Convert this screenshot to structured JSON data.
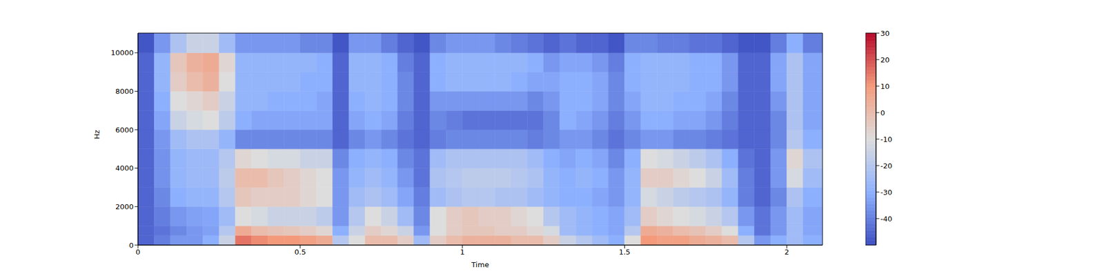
{
  "chart_data": {
    "type": "heatmap",
    "xlabel": "Time",
    "ylabel": "Hz",
    "xlim": [
      0,
      2.11
    ],
    "xticks": [
      0,
      0.5,
      1,
      1.5,
      2
    ],
    "ylim": [
      0,
      11025
    ],
    "yticks": [
      0,
      2000,
      4000,
      6000,
      8000,
      10000
    ],
    "x_edges": [
      0,
      0.05,
      0.1,
      0.15,
      0.2,
      0.25,
      0.3,
      0.35,
      0.4,
      0.45,
      0.5,
      0.55,
      0.6,
      0.65,
      0.7,
      0.75,
      0.8,
      0.85,
      0.9,
      0.95,
      1.0,
      1.05,
      1.1,
      1.15,
      1.2,
      1.25,
      1.3,
      1.35,
      1.4,
      1.45,
      1.5,
      1.55,
      1.6,
      1.65,
      1.7,
      1.75,
      1.8,
      1.85,
      1.9,
      1.95,
      2.0,
      2.05,
      2.11
    ],
    "y_edges": [
      0,
      500,
      1000,
      2000,
      3000,
      4000,
      5000,
      6000,
      7000,
      8000,
      9000,
      10000,
      11025
    ],
    "cells": [
      [
        -45,
        -40,
        -35,
        -35,
        -30,
        -15,
        15,
        12,
        10,
        10,
        8,
        5,
        -20,
        -10,
        0,
        0,
        -5,
        -25,
        -5,
        0,
        3,
        3,
        3,
        0,
        0,
        -5,
        -15,
        -20,
        -25,
        -30,
        -10,
        10,
        8,
        8,
        5,
        3,
        0,
        -20,
        -35,
        -30,
        -25,
        -30
      ],
      [
        -45,
        -42,
        -38,
        -35,
        -33,
        -20,
        5,
        0,
        -2,
        -3,
        -5,
        -8,
        -30,
        -15,
        -5,
        -8,
        -15,
        -35,
        -10,
        -5,
        -3,
        -3,
        -5,
        -5,
        -8,
        -12,
        -25,
        -28,
        -30,
        -32,
        -20,
        5,
        3,
        0,
        -2,
        -5,
        -10,
        -30,
        -42,
        -35,
        -25,
        -32
      ],
      [
        -45,
        -40,
        -35,
        -33,
        -32,
        -25,
        -10,
        -12,
        -15,
        -15,
        -15,
        -18,
        -35,
        -20,
        -10,
        -15,
        -25,
        -38,
        -10,
        -5,
        -3,
        -5,
        -5,
        -8,
        -10,
        -20,
        -25,
        -28,
        -30,
        -32,
        -25,
        -5,
        -8,
        -10,
        -12,
        -15,
        -20,
        -35,
        -42,
        -35,
        -25,
        -32
      ],
      [
        -45,
        -38,
        -30,
        -28,
        -28,
        -20,
        -3,
        -5,
        -5,
        -5,
        -8,
        -10,
        -35,
        -25,
        -22,
        -25,
        -32,
        -40,
        -25,
        -22,
        -20,
        -20,
        -22,
        -22,
        -25,
        -28,
        -30,
        -30,
        -32,
        -35,
        -28,
        -12,
        -15,
        -18,
        -20,
        -22,
        -28,
        -40,
        -45,
        -38,
        -22,
        -30
      ],
      [
        -45,
        -36,
        -28,
        -26,
        -26,
        -18,
        0,
        0,
        -3,
        -5,
        -8,
        -10,
        -35,
        -28,
        -25,
        -28,
        -35,
        -42,
        -22,
        -20,
        -18,
        -18,
        -18,
        -20,
        -22,
        -28,
        -30,
        -28,
        -30,
        -35,
        -28,
        -5,
        -5,
        -8,
        -10,
        -15,
        -25,
        -40,
        -45,
        -35,
        -12,
        -25
      ],
      [
        -45,
        -36,
        -28,
        -26,
        -26,
        -20,
        -8,
        -10,
        -12,
        -12,
        -15,
        -15,
        -38,
        -30,
        -28,
        -30,
        -38,
        -42,
        -25,
        -22,
        -22,
        -22,
        -22,
        -22,
        -25,
        -30,
        -32,
        -30,
        -32,
        -38,
        -30,
        -10,
        -12,
        -15,
        -18,
        -22,
        -30,
        -42,
        -45,
        -35,
        -8,
        -22
      ],
      [
        -45,
        -35,
        -25,
        -22,
        -22,
        -28,
        -38,
        -38,
        -38,
        -38,
        -38,
        -38,
        -45,
        -38,
        -35,
        -38,
        -42,
        -45,
        -40,
        -38,
        -38,
        -38,
        -38,
        -38,
        -40,
        -38,
        -35,
        -35,
        -38,
        -42,
        -38,
        -35,
        -35,
        -38,
        -38,
        -40,
        -42,
        -45,
        -45,
        -38,
        -20,
        -30
      ],
      [
        -45,
        -32,
        -15,
        -12,
        -10,
        -18,
        -30,
        -32,
        -32,
        -32,
        -32,
        -32,
        -45,
        -32,
        -30,
        -32,
        -40,
        -45,
        -38,
        -40,
        -42,
        -42,
        -42,
        -42,
        -42,
        -38,
        -30,
        -32,
        -35,
        -40,
        -35,
        -30,
        -30,
        -32,
        -32,
        -35,
        -40,
        -45,
        -45,
        -38,
        -22,
        -32
      ],
      [
        -45,
        -30,
        -10,
        -8,
        -5,
        -15,
        -28,
        -28,
        -30,
        -30,
        -30,
        -32,
        -45,
        -30,
        -28,
        -30,
        -38,
        -45,
        -35,
        -35,
        -35,
        -35,
        -35,
        -35,
        -38,
        -35,
        -30,
        -30,
        -32,
        -38,
        -32,
        -28,
        -28,
        -30,
        -30,
        -32,
        -38,
        -45,
        -45,
        -35,
        -22,
        -32
      ],
      [
        -45,
        -28,
        -5,
        0,
        3,
        -10,
        -28,
        -28,
        -28,
        -28,
        -30,
        -30,
        -45,
        -28,
        -28,
        -30,
        -38,
        -45,
        -30,
        -28,
        -28,
        -28,
        -28,
        -30,
        -32,
        -32,
        -30,
        -30,
        -32,
        -38,
        -30,
        -28,
        -28,
        -28,
        -30,
        -30,
        -35,
        -45,
        -45,
        -32,
        -22,
        -32
      ],
      [
        -45,
        -28,
        -3,
        3,
        5,
        -8,
        -28,
        -28,
        -28,
        -28,
        -28,
        -30,
        -45,
        -28,
        -28,
        -30,
        -40,
        -45,
        -30,
        -28,
        -28,
        -28,
        -28,
        -28,
        -30,
        -35,
        -32,
        -32,
        -35,
        -40,
        -30,
        -28,
        -28,
        -28,
        -30,
        -30,
        -35,
        -45,
        -45,
        -32,
        -22,
        -32
      ],
      [
        -48,
        -35,
        -22,
        -15,
        -15,
        -25,
        -35,
        -35,
        -35,
        -35,
        -38,
        -38,
        -48,
        -35,
        -35,
        -40,
        -45,
        -48,
        -38,
        -35,
        -35,
        -35,
        -38,
        -40,
        -42,
        -45,
        -42,
        -45,
        -45,
        -48,
        -38,
        -38,
        -40,
        -40,
        -42,
        -42,
        -45,
        -48,
        -48,
        -40,
        -30,
        -40
      ]
    ],
    "colorbar": {
      "range": [
        -50,
        30
      ],
      "ticks": [
        -40,
        -30,
        -20,
        -10,
        0,
        10,
        20,
        30
      ]
    }
  }
}
